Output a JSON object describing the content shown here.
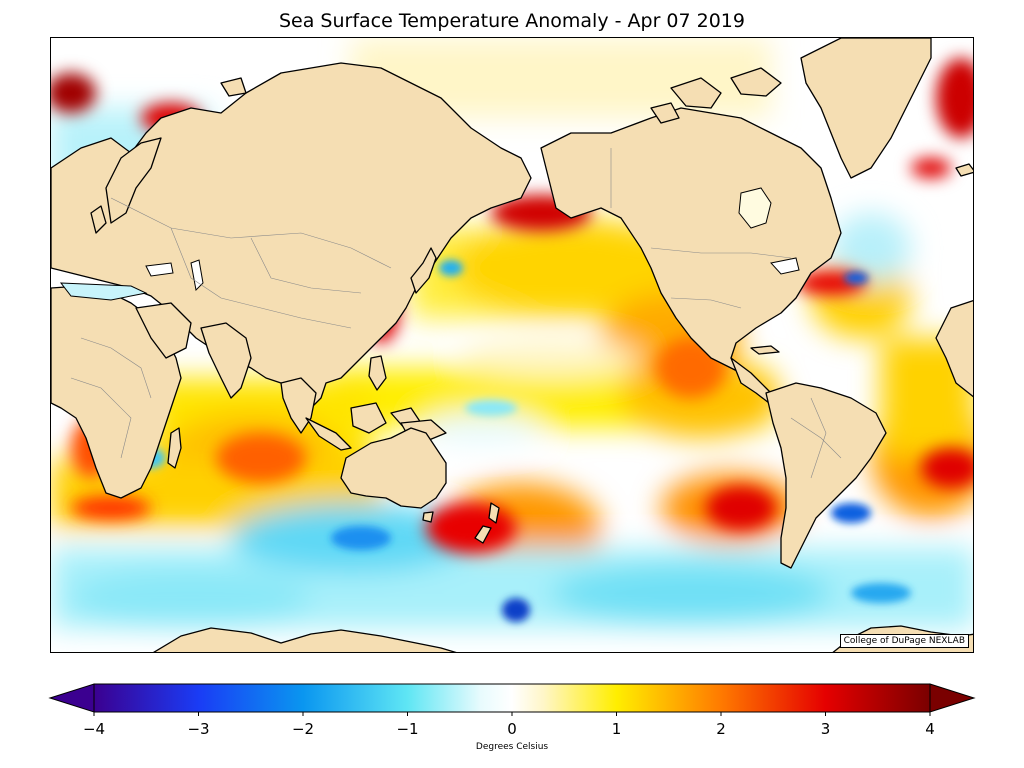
{
  "title": "Sea Surface Temperature Anomaly - Apr 07 2019",
  "credit": "College of DuPage NEXLAB",
  "colorbar": {
    "label": "Degrees Celsius",
    "min": -4,
    "max": 4,
    "ticks": [
      "−4",
      "−3",
      "−2",
      "−1",
      "0",
      "1",
      "2",
      "3",
      "4"
    ],
    "extend": "both",
    "stops": [
      {
        "value": -4,
        "color": "#3b0090"
      },
      {
        "value": -3,
        "color": "#1a3cf5"
      },
      {
        "value": -2,
        "color": "#0a96f0"
      },
      {
        "value": -1,
        "color": "#5fe6f4"
      },
      {
        "value": -0.3,
        "color": "#e8fbfd"
      },
      {
        "value": 0,
        "color": "#ffffff"
      },
      {
        "value": 0.3,
        "color": "#fff6c8"
      },
      {
        "value": 1,
        "color": "#ffee00"
      },
      {
        "value": 2,
        "color": "#ff7a00"
      },
      {
        "value": 3,
        "color": "#e50000"
      },
      {
        "value": 4,
        "color": "#7a0000"
      }
    ]
  },
  "colors": {
    "land": "#f5deb3",
    "coastline": "#000000",
    "borders": "#8a8a8a",
    "ocean_background": "#ffffff"
  }
}
